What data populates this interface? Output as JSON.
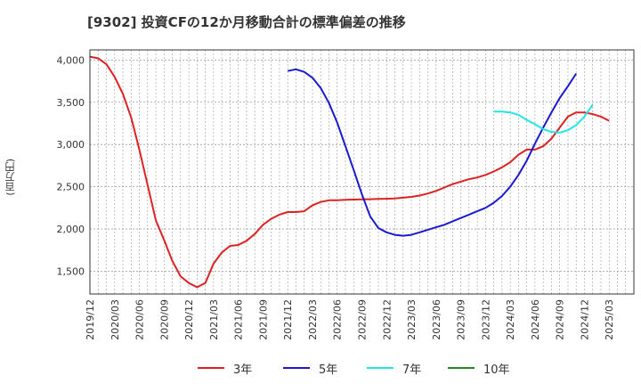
{
  "chart_data": {
    "type": "line",
    "title": "[9302]  投資CFの12か月移動合計の標準偏差の推移",
    "ylabel": "(百万円)",
    "ylim": [
      1230,
      4120
    ],
    "yticks": [
      1500,
      2000,
      2500,
      3000,
      3500,
      4000
    ],
    "ytick_labels": [
      "1,500",
      "2,000",
      "2,500",
      "3,000",
      "3,500",
      "4,000"
    ],
    "xlim": [
      0,
      66
    ],
    "xtick_labels": [
      "2019/12",
      "2020/03",
      "2020/06",
      "2020/09",
      "2020/12",
      "2021/03",
      "2021/06",
      "2021/09",
      "2021/12",
      "2022/03",
      "2022/06",
      "2022/09",
      "2022/12",
      "2023/03",
      "2023/06",
      "2023/09",
      "2023/12",
      "2024/03",
      "2024/06",
      "2024/09",
      "2024/12",
      "2025/03"
    ],
    "grid": true,
    "legend_position": "bottom",
    "series": [
      {
        "name": "3年",
        "color": "#dd2222",
        "start": 0,
        "values": [
          4040,
          4020,
          3950,
          3800,
          3600,
          3320,
          2940,
          2520,
          2100,
          1870,
          1620,
          1440,
          1360,
          1310,
          1360,
          1590,
          1720,
          1800,
          1810,
          1860,
          1940,
          2050,
          2120,
          2170,
          2200,
          2200,
          2210,
          2280,
          2320,
          2340,
          2340,
          2345,
          2348,
          2350,
          2352,
          2355,
          2358,
          2362,
          2370,
          2380,
          2395,
          2420,
          2450,
          2490,
          2530,
          2560,
          2590,
          2610,
          2640,
          2680,
          2730,
          2790,
          2880,
          2940,
          2940,
          2980,
          3070,
          3200,
          3330,
          3380,
          3380,
          3360,
          3330,
          3280
        ]
      },
      {
        "name": "5年",
        "color": "#1a1acc",
        "start": 24,
        "values": [
          3870,
          3890,
          3860,
          3790,
          3670,
          3490,
          3260,
          2980,
          2700,
          2410,
          2150,
          2010,
          1960,
          1930,
          1920,
          1930,
          1960,
          1990,
          2020,
          2050,
          2090,
          2130,
          2170,
          2210,
          2250,
          2310,
          2390,
          2500,
          2640,
          2810,
          3010,
          3200,
          3380,
          3550,
          3690,
          3840
        ]
      },
      {
        "name": "7年",
        "color": "#22e5e5",
        "start": 49,
        "values": [
          3390,
          3390,
          3380,
          3350,
          3290,
          3240,
          3180,
          3150,
          3140,
          3170,
          3230,
          3330,
          3470
        ]
      },
      {
        "name": "10年",
        "color": "#228822",
        "start": 0,
        "values": []
      }
    ]
  }
}
